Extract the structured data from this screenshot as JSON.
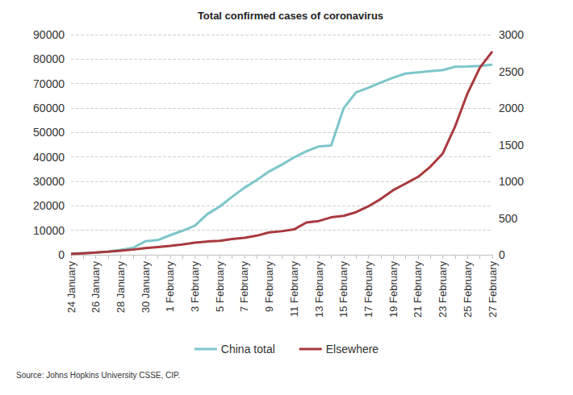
{
  "chart_data": {
    "type": "line",
    "title": "Total confirmed cases of coronavirus",
    "source": "Source: Johns Hopkins University CSSE, CIP.",
    "categories": [
      "24 January",
      null,
      "26 January",
      null,
      "28 January",
      null,
      "30 January",
      null,
      "1 February",
      null,
      "3 February",
      null,
      "5 February",
      null,
      "7 February",
      null,
      "9 February",
      null,
      "11 February",
      null,
      "13 February",
      null,
      "15 February",
      null,
      "17 February",
      null,
      "19 February",
      null,
      "21 February",
      null,
      "23 February",
      null,
      "25 February",
      null,
      "27 February"
    ],
    "series": [
      {
        "name": "China total",
        "color": "#7cc6ca",
        "axis": "y",
        "line_style": "solid",
        "values": [
          500,
          700,
          900,
          1300,
          2000,
          2800,
          5500,
          6000,
          8000,
          9800,
          11900,
          16600,
          19700,
          23700,
          27400,
          30600,
          34100,
          36800,
          39800,
          42300,
          44300,
          44700,
          59900,
          66400,
          68300,
          70400,
          72400,
          74100,
          74600,
          75100,
          75500,
          76900,
          77000,
          77200,
          77700
        ]
      },
      {
        "name": "Elsewhere",
        "color": "#a83a3f",
        "axis": "y2",
        "line_style": "solid",
        "values": [
          10,
          20,
          30,
          40,
          55,
          70,
          90,
          105,
          120,
          140,
          165,
          180,
          190,
          215,
          230,
          260,
          305,
          320,
          345,
          440,
          460,
          510,
          530,
          580,
          660,
          760,
          880,
          970,
          1060,
          1200,
          1380,
          1750,
          2200,
          2550,
          2770
        ]
      }
    ],
    "ylim": [
      0,
      90000
    ],
    "yticks": [
      0,
      10000,
      20000,
      30000,
      40000,
      50000,
      60000,
      70000,
      80000,
      90000
    ],
    "y2lim": [
      0,
      3000
    ],
    "y2ticks": [
      0,
      500,
      1000,
      1500,
      2000,
      2500,
      3000
    ],
    "grid": true,
    "legend": "bottom"
  }
}
